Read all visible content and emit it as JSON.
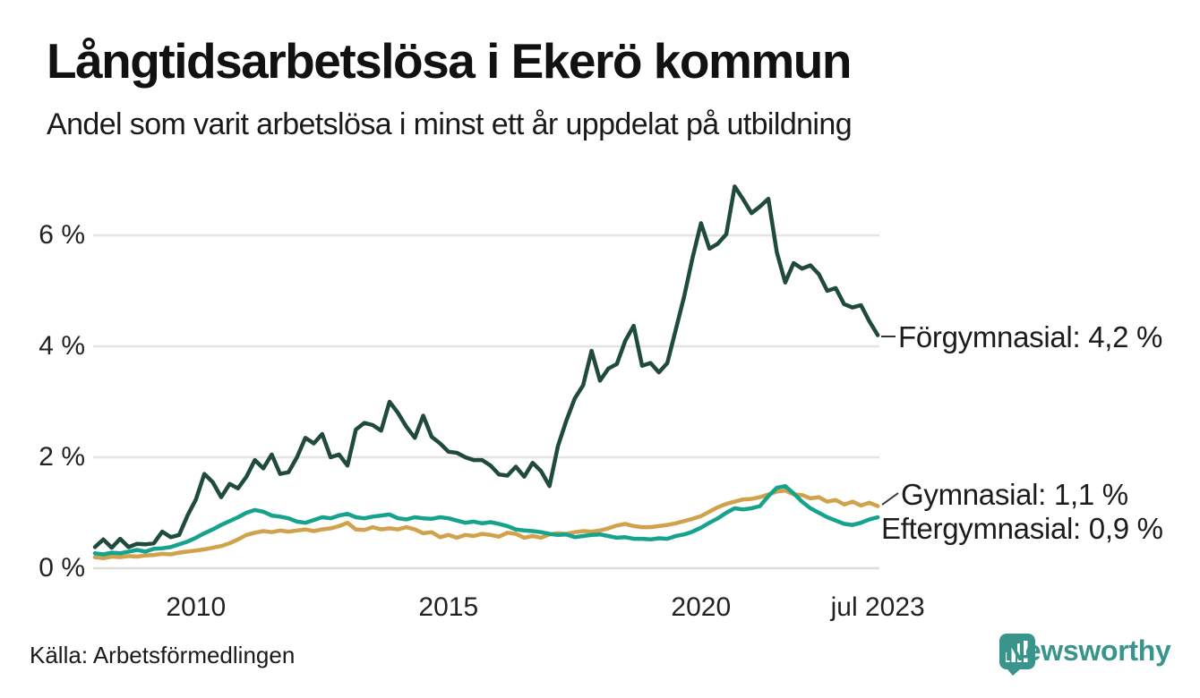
{
  "header": {
    "title": "Långtidsarbetslösa i Ekerö kommun",
    "subtitle": "Andel som varit arbetslösa i minst ett år uppdelat på utbildning"
  },
  "footer": {
    "source": "Källa: Arbetsförmedlingen",
    "brand": "Newsworthy"
  },
  "colors": {
    "forgymnasial": "#1f4a3d",
    "gymnasial": "#d0a24b",
    "eftergymnasial": "#16a38d",
    "gridline": "#e4e4e4",
    "baseline": "#dcdcdc",
    "leader": "#333333",
    "text": "#1a1a1a",
    "brand_teal": "#39948b"
  },
  "chart_data": {
    "type": "line",
    "title": "Långtidsarbetslösa i Ekerö kommun",
    "subtitle": "Andel som varit arbetslösa i minst ett år uppdelat på utbildning",
    "unit": "%",
    "grid": true,
    "legend_position": "end-of-line labels, right side",
    "xlim": [
      2008.0,
      2023.54
    ],
    "ylim": [
      0,
      7.2
    ],
    "x_start": 2008.0,
    "x_step": 0.166667,
    "x_ticks": [
      {
        "label": "2010",
        "year": 2010.0
      },
      {
        "label": "2015",
        "year": 2015.0
      },
      {
        "label": "2020",
        "year": 2020.0
      },
      {
        "label": "jul 2023",
        "year": 2023.5
      }
    ],
    "y_ticks": [
      {
        "label": "0 %",
        "value": 0
      },
      {
        "label": "2 %",
        "value": 2
      },
      {
        "label": "4 %",
        "value": 4
      },
      {
        "label": "6 %",
        "value": 6
      }
    ],
    "series": [
      {
        "name": "Förgymnasial",
        "end_label": "Förgymnasial: 4,2 %",
        "end_value": "4,2 %",
        "color": "#1f4a3d",
        "values": [
          0.38,
          0.52,
          0.37,
          0.53,
          0.38,
          0.44,
          0.43,
          0.45,
          0.66,
          0.56,
          0.6,
          0.95,
          1.24,
          1.7,
          1.55,
          1.28,
          1.52,
          1.44,
          1.65,
          1.95,
          1.8,
          2.05,
          1.7,
          1.73,
          2.0,
          2.35,
          2.25,
          2.42,
          2.0,
          2.05,
          1.85,
          2.5,
          2.62,
          2.58,
          2.48,
          3.0,
          2.8,
          2.55,
          2.35,
          2.75,
          2.37,
          2.25,
          2.1,
          2.08,
          2.0,
          1.95,
          1.95,
          1.85,
          1.69,
          1.67,
          1.83,
          1.65,
          1.9,
          1.75,
          1.48,
          2.2,
          2.66,
          3.06,
          3.3,
          3.92,
          3.38,
          3.6,
          3.68,
          4.1,
          4.37,
          3.65,
          3.7,
          3.53,
          3.7,
          4.3,
          4.9,
          5.6,
          6.22,
          5.76,
          5.85,
          6.02,
          6.88,
          6.65,
          6.4,
          6.52,
          6.66,
          5.7,
          5.15,
          5.5,
          5.4,
          5.46,
          5.3,
          5.0,
          5.05,
          4.76,
          4.7,
          4.74,
          4.45,
          4.2
        ]
      },
      {
        "name": "Gymnasial",
        "end_label": "Gymnasial: 1,1 %",
        "end_value": "1,1 %",
        "color": "#d0a24b",
        "values": [
          0.2,
          0.18,
          0.21,
          0.2,
          0.22,
          0.21,
          0.23,
          0.24,
          0.26,
          0.25,
          0.28,
          0.3,
          0.32,
          0.34,
          0.37,
          0.4,
          0.45,
          0.52,
          0.6,
          0.64,
          0.67,
          0.65,
          0.68,
          0.66,
          0.68,
          0.7,
          0.67,
          0.7,
          0.72,
          0.76,
          0.82,
          0.7,
          0.69,
          0.74,
          0.7,
          0.72,
          0.7,
          0.74,
          0.7,
          0.63,
          0.65,
          0.56,
          0.6,
          0.55,
          0.6,
          0.58,
          0.62,
          0.6,
          0.57,
          0.64,
          0.62,
          0.55,
          0.58,
          0.55,
          0.61,
          0.63,
          0.62,
          0.65,
          0.67,
          0.66,
          0.68,
          0.72,
          0.77,
          0.8,
          0.76,
          0.74,
          0.74,
          0.76,
          0.78,
          0.81,
          0.85,
          0.89,
          0.94,
          1.02,
          1.1,
          1.16,
          1.2,
          1.24,
          1.25,
          1.28,
          1.33,
          1.38,
          1.4,
          1.33,
          1.32,
          1.26,
          1.28,
          1.2,
          1.23,
          1.15,
          1.2,
          1.13,
          1.18,
          1.12
        ]
      },
      {
        "name": "Eftergymnasial",
        "end_label": "Eftergymnasial: 0,9 %",
        "end_value": "0,9 %",
        "color": "#16a38d",
        "values": [
          0.27,
          0.25,
          0.28,
          0.27,
          0.3,
          0.33,
          0.3,
          0.35,
          0.36,
          0.38,
          0.43,
          0.48,
          0.55,
          0.63,
          0.7,
          0.78,
          0.85,
          0.92,
          1.0,
          1.05,
          1.02,
          0.95,
          0.93,
          0.9,
          0.84,
          0.82,
          0.87,
          0.92,
          0.9,
          0.95,
          0.98,
          0.92,
          0.9,
          0.93,
          0.95,
          0.97,
          0.9,
          0.88,
          0.92,
          0.9,
          0.89,
          0.92,
          0.9,
          0.86,
          0.82,
          0.84,
          0.81,
          0.83,
          0.8,
          0.76,
          0.7,
          0.68,
          0.67,
          0.65,
          0.62,
          0.6,
          0.61,
          0.56,
          0.58,
          0.6,
          0.61,
          0.58,
          0.55,
          0.56,
          0.53,
          0.53,
          0.52,
          0.54,
          0.53,
          0.58,
          0.61,
          0.66,
          0.73,
          0.82,
          0.9,
          1.0,
          1.08,
          1.06,
          1.08,
          1.12,
          1.3,
          1.45,
          1.48,
          1.35,
          1.2,
          1.08,
          1.0,
          0.92,
          0.86,
          0.8,
          0.78,
          0.82,
          0.88,
          0.92
        ]
      }
    ]
  }
}
